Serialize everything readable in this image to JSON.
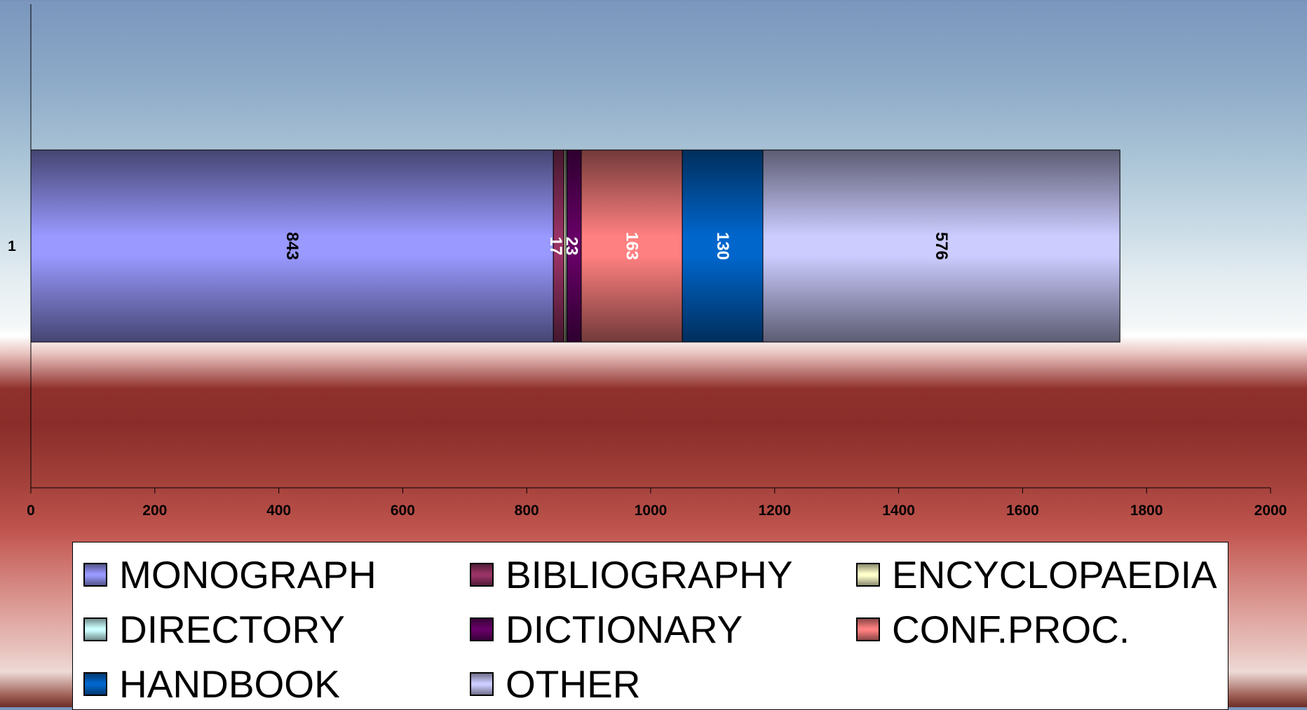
{
  "chart_data": {
    "type": "bar",
    "orientation": "horizontal",
    "stacked": true,
    "categories": [
      "1"
    ],
    "series": [
      {
        "name": "MONOGRAPH",
        "values": [
          843
        ],
        "color": "#9999ff"
      },
      {
        "name": "BIBLIOGRAPHY",
        "values": [
          17
        ],
        "color": "#993366"
      },
      {
        "name": "ENCYCLOPAEDIA",
        "values": [
          3
        ],
        "color": "#ffffcc"
      },
      {
        "name": "DIRECTORY",
        "values": [
          2
        ],
        "color": "#ccffff"
      },
      {
        "name": "DICTIONARY",
        "values": [
          23
        ],
        "color": "#660066"
      },
      {
        "name": "CONF.PROC.",
        "values": [
          163
        ],
        "color": "#ff8080"
      },
      {
        "name": "HANDBOOK",
        "values": [
          130
        ],
        "color": "#0066cc"
      },
      {
        "name": "OTHER",
        "values": [
          576
        ],
        "color": "#ccccff"
      }
    ],
    "data_labels": [
      {
        "series": "MONOGRAPH",
        "text": "843",
        "color": "#000000"
      },
      {
        "series": "BIBLIOGRAPHY",
        "text": "17",
        "color": "#ffffff"
      },
      {
        "series": "DICTIONARY",
        "text": "23",
        "color": "#ffffff"
      },
      {
        "series": "CONF.PROC.",
        "text": "163",
        "color": "#ffffff"
      },
      {
        "series": "HANDBOOK",
        "text": "130",
        "color": "#ffffff"
      },
      {
        "series": "OTHER",
        "text": "576",
        "color": "#000000"
      }
    ],
    "xlim": [
      0,
      2000
    ],
    "xticks": [
      0,
      200,
      400,
      600,
      800,
      1000,
      1200,
      1400,
      1600,
      1800,
      2000
    ],
    "title": "",
    "xlabel": "",
    "ylabel": "",
    "grid": false,
    "legend_position": "bottom"
  }
}
